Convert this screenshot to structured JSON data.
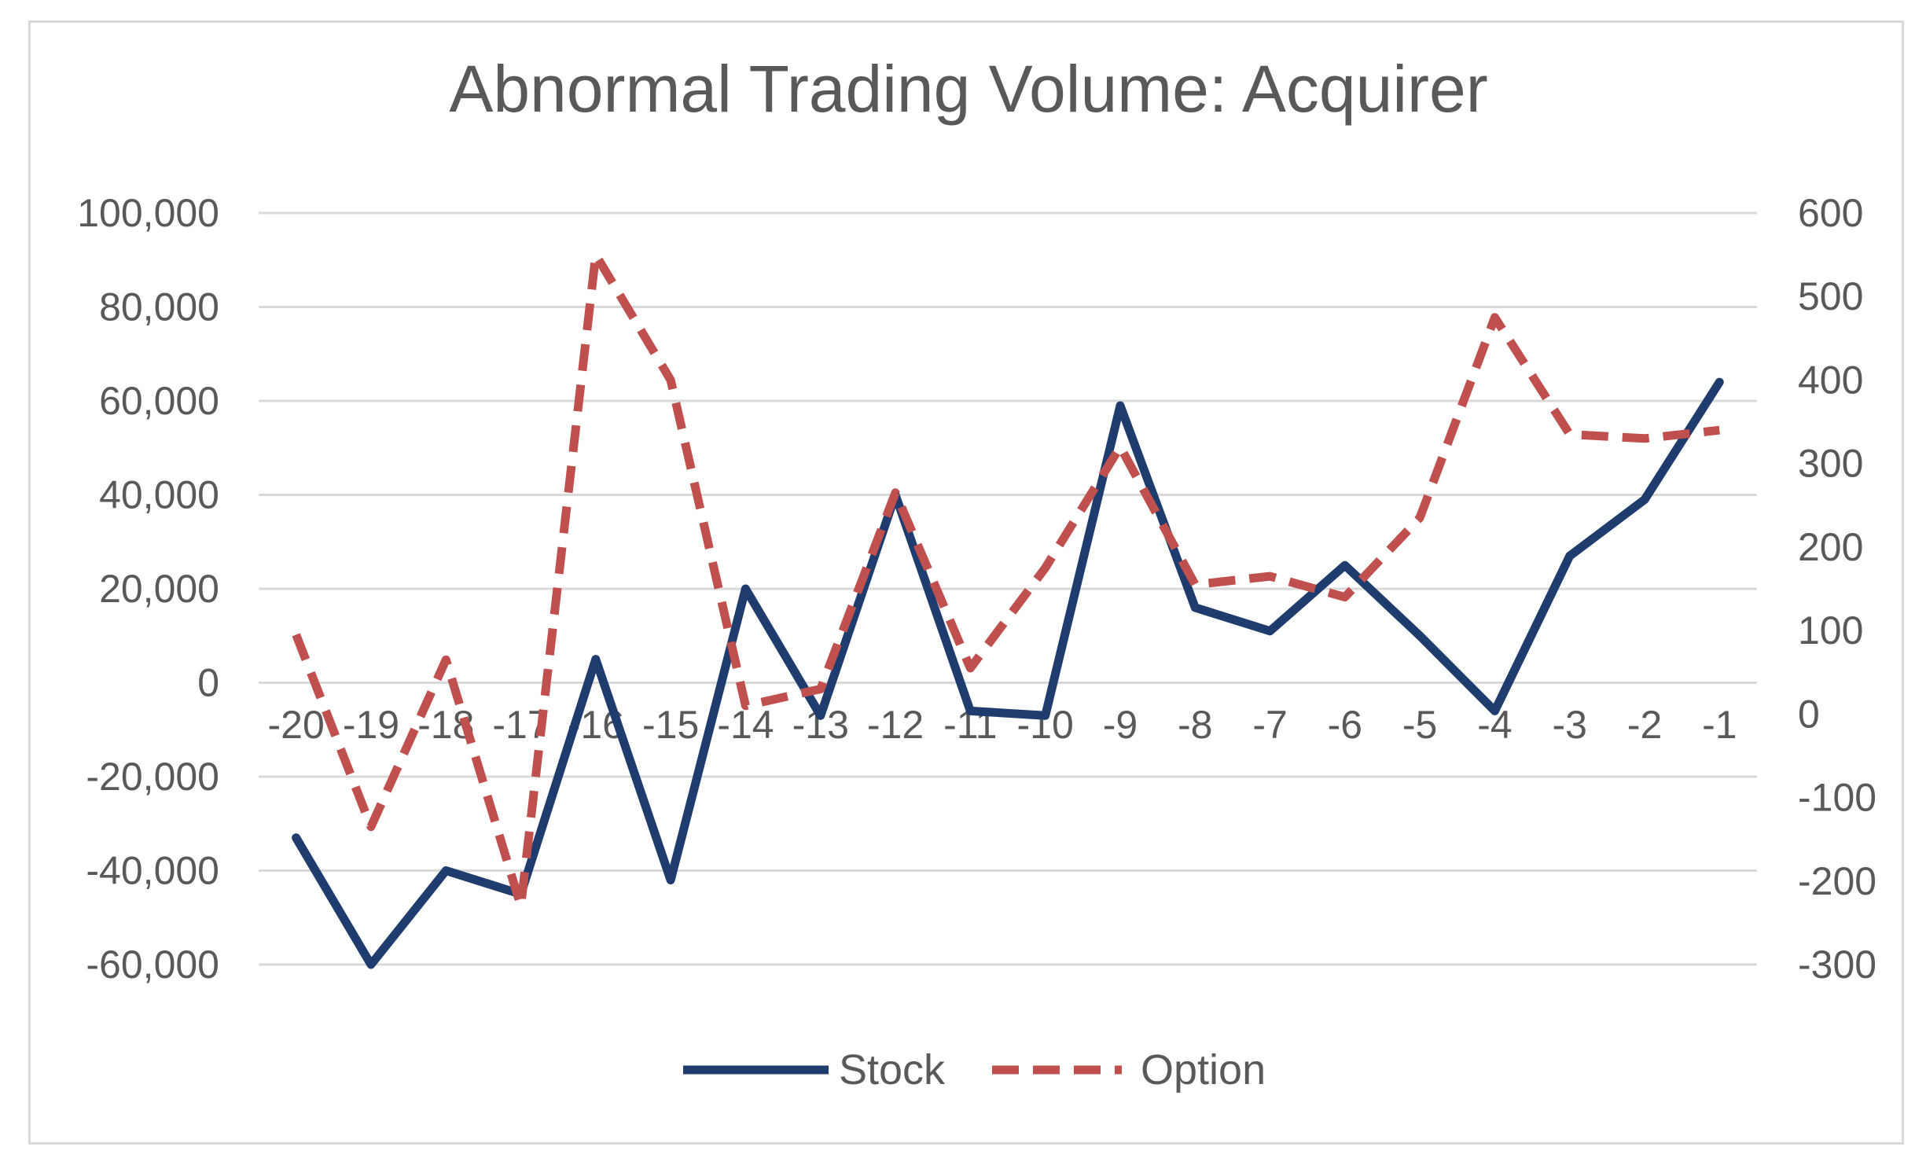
{
  "chart_data": {
    "type": "line",
    "title": "Abnormal Trading Volume: Acquirer",
    "xlabel": "",
    "ylabel": "",
    "categories": [
      "-20",
      "-19",
      "-18",
      "-17",
      "-16",
      "-15",
      "-14",
      "-13",
      "-12",
      "-11",
      "-10",
      "-9",
      "-8",
      "-7",
      "-6",
      "-5",
      "-4",
      "-3",
      "-2",
      "-1"
    ],
    "y_left": {
      "ylim": [
        -60000,
        100000
      ],
      "ticks": [
        100000,
        80000,
        60000,
        40000,
        20000,
        0,
        -20000,
        -40000,
        -60000
      ],
      "tick_labels": [
        "100,000",
        "80,000",
        "60,000",
        "40,000",
        "20,000",
        "0",
        "-20,000",
        "-40,000",
        "-60,000"
      ]
    },
    "y_right": {
      "ylim": [
        -300,
        600
      ],
      "ticks": [
        600,
        500,
        400,
        300,
        200,
        100,
        0,
        -100,
        -200,
        -300
      ],
      "tick_labels": [
        "600",
        "500",
        "400",
        "300",
        "200",
        "100",
        "0",
        "-100",
        "-200",
        "-300"
      ]
    },
    "grid": true,
    "legend_position": "bottom",
    "series": [
      {
        "name": "Stock",
        "axis": "left",
        "style": "solid",
        "color": "#1f3c6e",
        "values": [
          -33000,
          -60000,
          -40000,
          -45000,
          5000,
          -42000,
          20000,
          -7000,
          40000,
          -6000,
          -7000,
          59000,
          16000,
          11000,
          25000,
          10000,
          -6000,
          27000,
          39000,
          64000
        ]
      },
      {
        "name": "Option",
        "axis": "right",
        "style": "dashed",
        "color": "#c0504d",
        "values": [
          95,
          -135,
          65,
          -230,
          550,
          400,
          10,
          30,
          265,
          55,
          175,
          320,
          155,
          165,
          140,
          235,
          475,
          335,
          330,
          340
        ]
      }
    ]
  }
}
